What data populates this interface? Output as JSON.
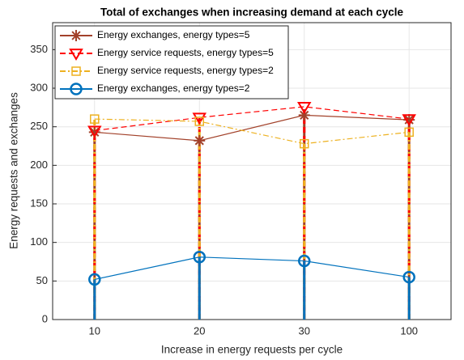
{
  "chart_data": {
    "type": "stem",
    "title": "Total of exchanges when increasing demand at each cycle",
    "xlabel": "Increase in energy requests per cycle",
    "ylabel": "Energy requests and exchanges",
    "categories": [
      "10",
      "20",
      "30",
      "100"
    ],
    "ylim": [
      0,
      385
    ],
    "yticks": [
      0,
      50,
      100,
      150,
      200,
      250,
      300,
      350
    ],
    "grid": true,
    "legend": "upper left",
    "series": [
      {
        "name": "Energy exchanges, energy types=5",
        "color": "#a2412a",
        "linestyle": "solid",
        "marker": "asterisk",
        "values": [
          243,
          232,
          265,
          259
        ]
      },
      {
        "name": "Energy service requests, energy types=5",
        "color": "#ff0000",
        "linestyle": "dashed",
        "marker": "triangle-down",
        "values": [
          245,
          262,
          276,
          260
        ]
      },
      {
        "name": "Energy service requests, energy types=2",
        "color": "#edb120",
        "linestyle": "dashdot",
        "marker": "square",
        "values": [
          260,
          257,
          228,
          243
        ]
      },
      {
        "name": "Energy exchanges, energy types=2",
        "color": "#0072bd",
        "linestyle": "solid",
        "marker": "circle",
        "values": [
          52,
          81,
          76,
          55
        ]
      }
    ]
  }
}
